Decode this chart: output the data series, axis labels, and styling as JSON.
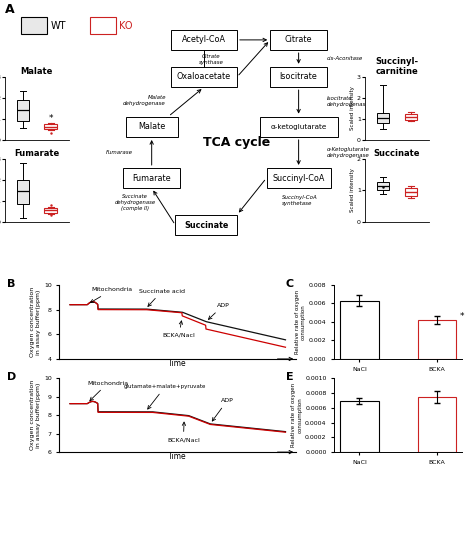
{
  "legend_wt_color": "#e8e8e8",
  "legend_ko_color": "#cc2222",
  "malate_boxplot": {
    "wt_q1": 0.9,
    "wt_med": 1.4,
    "wt_q3": 1.9,
    "wt_whislo": 0.55,
    "wt_whishi": 2.3,
    "ko_q1": 0.5,
    "ko_med": 0.62,
    "ko_q3": 0.73,
    "ko_whislo": 0.45,
    "ko_whishi": 0.78,
    "ko_outlier": 0.32,
    "ylim": [
      0,
      3
    ],
    "yticks": [
      0,
      1,
      2,
      3
    ]
  },
  "fumarate_boxplot": {
    "wt_q1": 0.85,
    "wt_med": 1.45,
    "wt_q3": 2.0,
    "wt_whislo": 0.2,
    "wt_whishi": 2.8,
    "ko_q1": 0.42,
    "ko_med": 0.56,
    "ko_q3": 0.68,
    "ko_whislo": 0.38,
    "ko_whishi": 0.73,
    "ko_outlier1": 0.32,
    "ko_outlier2": 0.82,
    "ylim": [
      0,
      3
    ],
    "yticks": [
      0,
      1,
      2,
      3
    ]
  },
  "succinylcarnitine_boxplot": {
    "wt_q1": 0.82,
    "wt_med": 1.05,
    "wt_q3": 1.28,
    "wt_whislo": 0.5,
    "wt_whishi": 2.6,
    "ko_q1": 0.95,
    "ko_med": 1.1,
    "ko_q3": 1.22,
    "ko_whislo": 0.88,
    "ko_whishi": 1.32,
    "ylim": [
      0,
      3
    ],
    "yticks": [
      0,
      1,
      2,
      3
    ]
  },
  "succinate_boxplot": {
    "wt_q1": 1.02,
    "wt_med": 1.15,
    "wt_q3": 1.28,
    "wt_whislo": 0.88,
    "wt_whishi": 1.42,
    "wt_outlier": 1.1,
    "ko_q1": 0.83,
    "ko_med": 0.95,
    "ko_q3": 1.08,
    "ko_whislo": 0.76,
    "ko_whishi": 1.15,
    "ylim": [
      0,
      2
    ],
    "yticks": [
      0,
      1,
      2
    ]
  },
  "panel_C": {
    "nacl_val": 0.0063,
    "bcka_val": 0.0042,
    "nacl_err": 0.0006,
    "bcka_err": 0.0004,
    "ylim": [
      0,
      0.008
    ],
    "nacl_color": "#f0f0f0",
    "bcka_color": "#f0f0f0",
    "nacl_edge": "#333333",
    "bcka_edge": "#cc2222",
    "yticks": [
      0.0,
      0.002,
      0.004,
      0.006,
      0.008
    ]
  },
  "panel_E": {
    "nacl_val": 0.00069,
    "bcka_val": 0.00075,
    "nacl_err": 3.5e-05,
    "bcka_err": 8e-05,
    "ylim": [
      0,
      0.001
    ],
    "nacl_color": "#f0f0f0",
    "bcka_color": "#f0f0f0",
    "nacl_edge": "#333333",
    "bcka_edge": "#cc2222",
    "yticks": [
      0.0,
      0.0002,
      0.0004,
      0.0006,
      0.0008,
      0.001
    ]
  }
}
